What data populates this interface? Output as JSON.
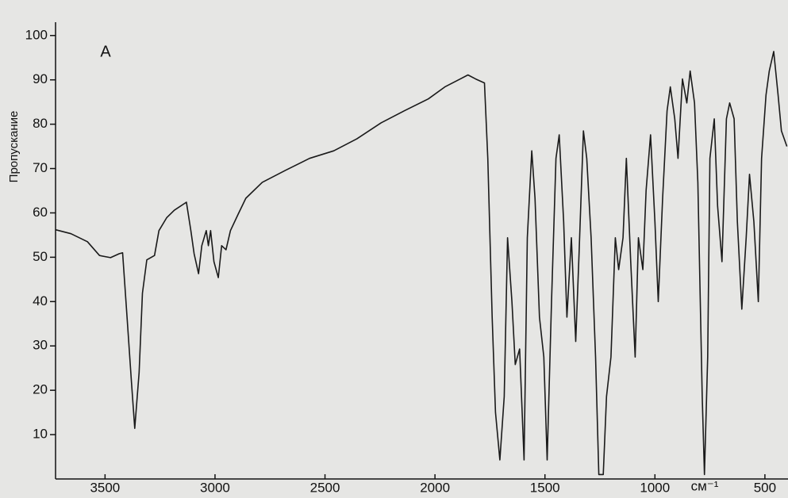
{
  "chart_data": {
    "type": "line",
    "ylabel": "Пропускание",
    "xlabel": "см⁻¹",
    "annotation": "A",
    "x": [
      3725,
      3655,
      3580,
      3525,
      3475,
      3435,
      3420,
      3400,
      3380,
      3365,
      3345,
      3330,
      3310,
      3275,
      3255,
      3220,
      3185,
      3130,
      3110,
      3095,
      3075,
      3060,
      3040,
      3030,
      3020,
      3005,
      2985,
      2970,
      2950,
      2930,
      2895,
      2860,
      2785,
      2680,
      2570,
      2460,
      2355,
      2245,
      2140,
      2030,
      1955,
      1885,
      1850,
      1815,
      1775,
      1760,
      1740,
      1725,
      1705,
      1685,
      1670,
      1650,
      1635,
      1615,
      1595,
      1580,
      1560,
      1545,
      1525,
      1505,
      1490,
      1470,
      1450,
      1435,
      1415,
      1400,
      1380,
      1360,
      1345,
      1325,
      1310,
      1290,
      1270,
      1255,
      1235,
      1220,
      1200,
      1180,
      1165,
      1145,
      1130,
      1110,
      1090,
      1075,
      1055,
      1040,
      1020,
      1000,
      985,
      965,
      945,
      930,
      910,
      895,
      875,
      855,
      840,
      820,
      805,
      785,
      775,
      760,
      750,
      730,
      715,
      695,
      675,
      660,
      640,
      625,
      605,
      585,
      570,
      550,
      530,
      515,
      495,
      480,
      460,
      440,
      425,
      400
    ],
    "series": [
      {
        "color": "#1a1a1a",
        "values": [
          56.2,
          55.3,
          53.5,
          50.4,
          49.9,
          50.8,
          51,
          36.5,
          22,
          11.4,
          24,
          41.9,
          49.4,
          50.4,
          56,
          58.9,
          60.6,
          62.4,
          56,
          50.8,
          46.3,
          52.6,
          56,
          52.6,
          56,
          49,
          45.4,
          52.6,
          51.7,
          56,
          59.7,
          63.3,
          66.9,
          69.6,
          72.3,
          74,
          76.7,
          80.3,
          83,
          85.7,
          88.4,
          90.2,
          91.1,
          90.2,
          89.3,
          72.3,
          36.5,
          15,
          4.3,
          18.6,
          54.4,
          40,
          25.8,
          29.3,
          4.3,
          54.4,
          74,
          63.3,
          36.5,
          27.5,
          4.3,
          40,
          72.3,
          77.6,
          58,
          36.5,
          54.4,
          31,
          50.8,
          78.5,
          72.3,
          54.4,
          27.5,
          1,
          1,
          18.6,
          27.5,
          54.4,
          47.2,
          54.4,
          72.3,
          49,
          27.5,
          54.4,
          47.2,
          65.1,
          77.6,
          58,
          40,
          63.3,
          83,
          88.4,
          81.2,
          72.3,
          90.2,
          84.8,
          92,
          84.8,
          66.9,
          18.6,
          1,
          27.5,
          72.3,
          81.2,
          61.5,
          49,
          81.2,
          84.8,
          81.2,
          58,
          38.3,
          54.4,
          68.7,
          58,
          40,
          72.3,
          86.6,
          92,
          96.4,
          86.6,
          78.5,
          75
        ]
      }
    ],
    "xlim": [
      3725,
      395
    ],
    "xticks": [
      3500,
      3000,
      2500,
      2000,
      1500,
      1000,
      500
    ],
    "ylim": [
      0,
      103
    ],
    "yticks": [
      10,
      20,
      30,
      40,
      50,
      60,
      70,
      80,
      90,
      100
    ],
    "grid": false
  }
}
